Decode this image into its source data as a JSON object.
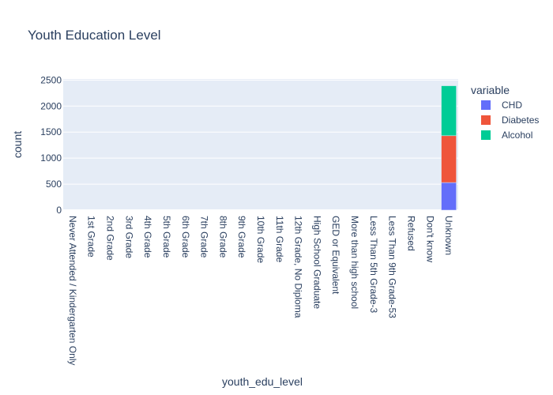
{
  "chart_data": {
    "type": "bar",
    "stacked": true,
    "title": "Youth Education Level",
    "xlabel": "youth_edu_level",
    "ylabel": "count",
    "ylim": [
      0,
      2520
    ],
    "yticks": [
      0,
      500,
      1000,
      1500,
      2000,
      2500
    ],
    "grid": true,
    "legend_title": "variable",
    "legend_position": "right",
    "categories": [
      "Never Attended / Kindergarten Only",
      "1st Grade",
      "2nd Grade",
      "3rd Grade",
      "4th Grade",
      "5th Grade",
      "6th Grade",
      "7th Grade",
      "8th Grade",
      "9th Grade",
      "10th Grade",
      "11th Grade",
      "12th Grade, No Diploma",
      "High School Graduate",
      "GED or Equivalent",
      "More than high school",
      "Less Than 5th Grade-3",
      "Less Than 9th Grade-53",
      "Refused",
      "Don't know",
      "Unknown"
    ],
    "series": [
      {
        "name": "CHD",
        "color": "#636efa",
        "values": [
          0,
          0,
          0,
          0,
          0,
          0,
          0,
          0,
          0,
          0,
          0,
          0,
          0,
          0,
          0,
          0,
          0,
          0,
          0,
          0,
          530
        ]
      },
      {
        "name": "Diabetes",
        "color": "#EF553B",
        "values": [
          0,
          0,
          0,
          0,
          0,
          0,
          0,
          0,
          0,
          0,
          0,
          0,
          0,
          0,
          0,
          0,
          0,
          0,
          0,
          0,
          900
        ]
      },
      {
        "name": "Alcohol",
        "color": "#00cc96",
        "values": [
          0,
          0,
          0,
          0,
          0,
          0,
          0,
          0,
          0,
          0,
          0,
          0,
          0,
          0,
          0,
          0,
          0,
          0,
          0,
          0,
          960
        ]
      }
    ]
  }
}
